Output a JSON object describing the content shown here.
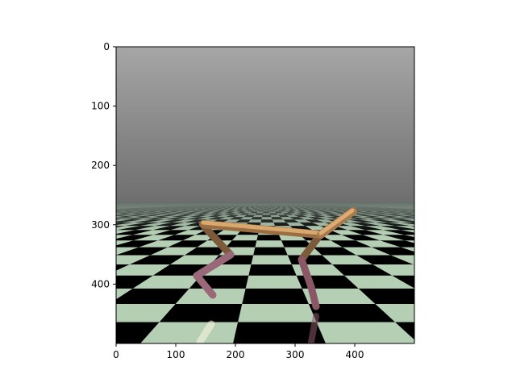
{
  "figure": {
    "image_width": 500,
    "image_height": 500,
    "x_ticks": [
      0,
      100,
      200,
      300,
      400
    ],
    "y_ticks": [
      0,
      100,
      200,
      300,
      400
    ]
  },
  "scene": {
    "description_names": [
      "sky-gradient",
      "checkered-floor",
      "half-cheetah-robot"
    ],
    "colors": {
      "sky_top": "#a6a6a6",
      "sky_bottom": "#6f6f6f",
      "floor_light": "#b4cfb4",
      "floor_dark": "#000000",
      "horizon": "#5f6a62",
      "torso": "#c8945e",
      "leg_upper": "#9a7348",
      "leg_lower": "#8a5a66"
    }
  }
}
